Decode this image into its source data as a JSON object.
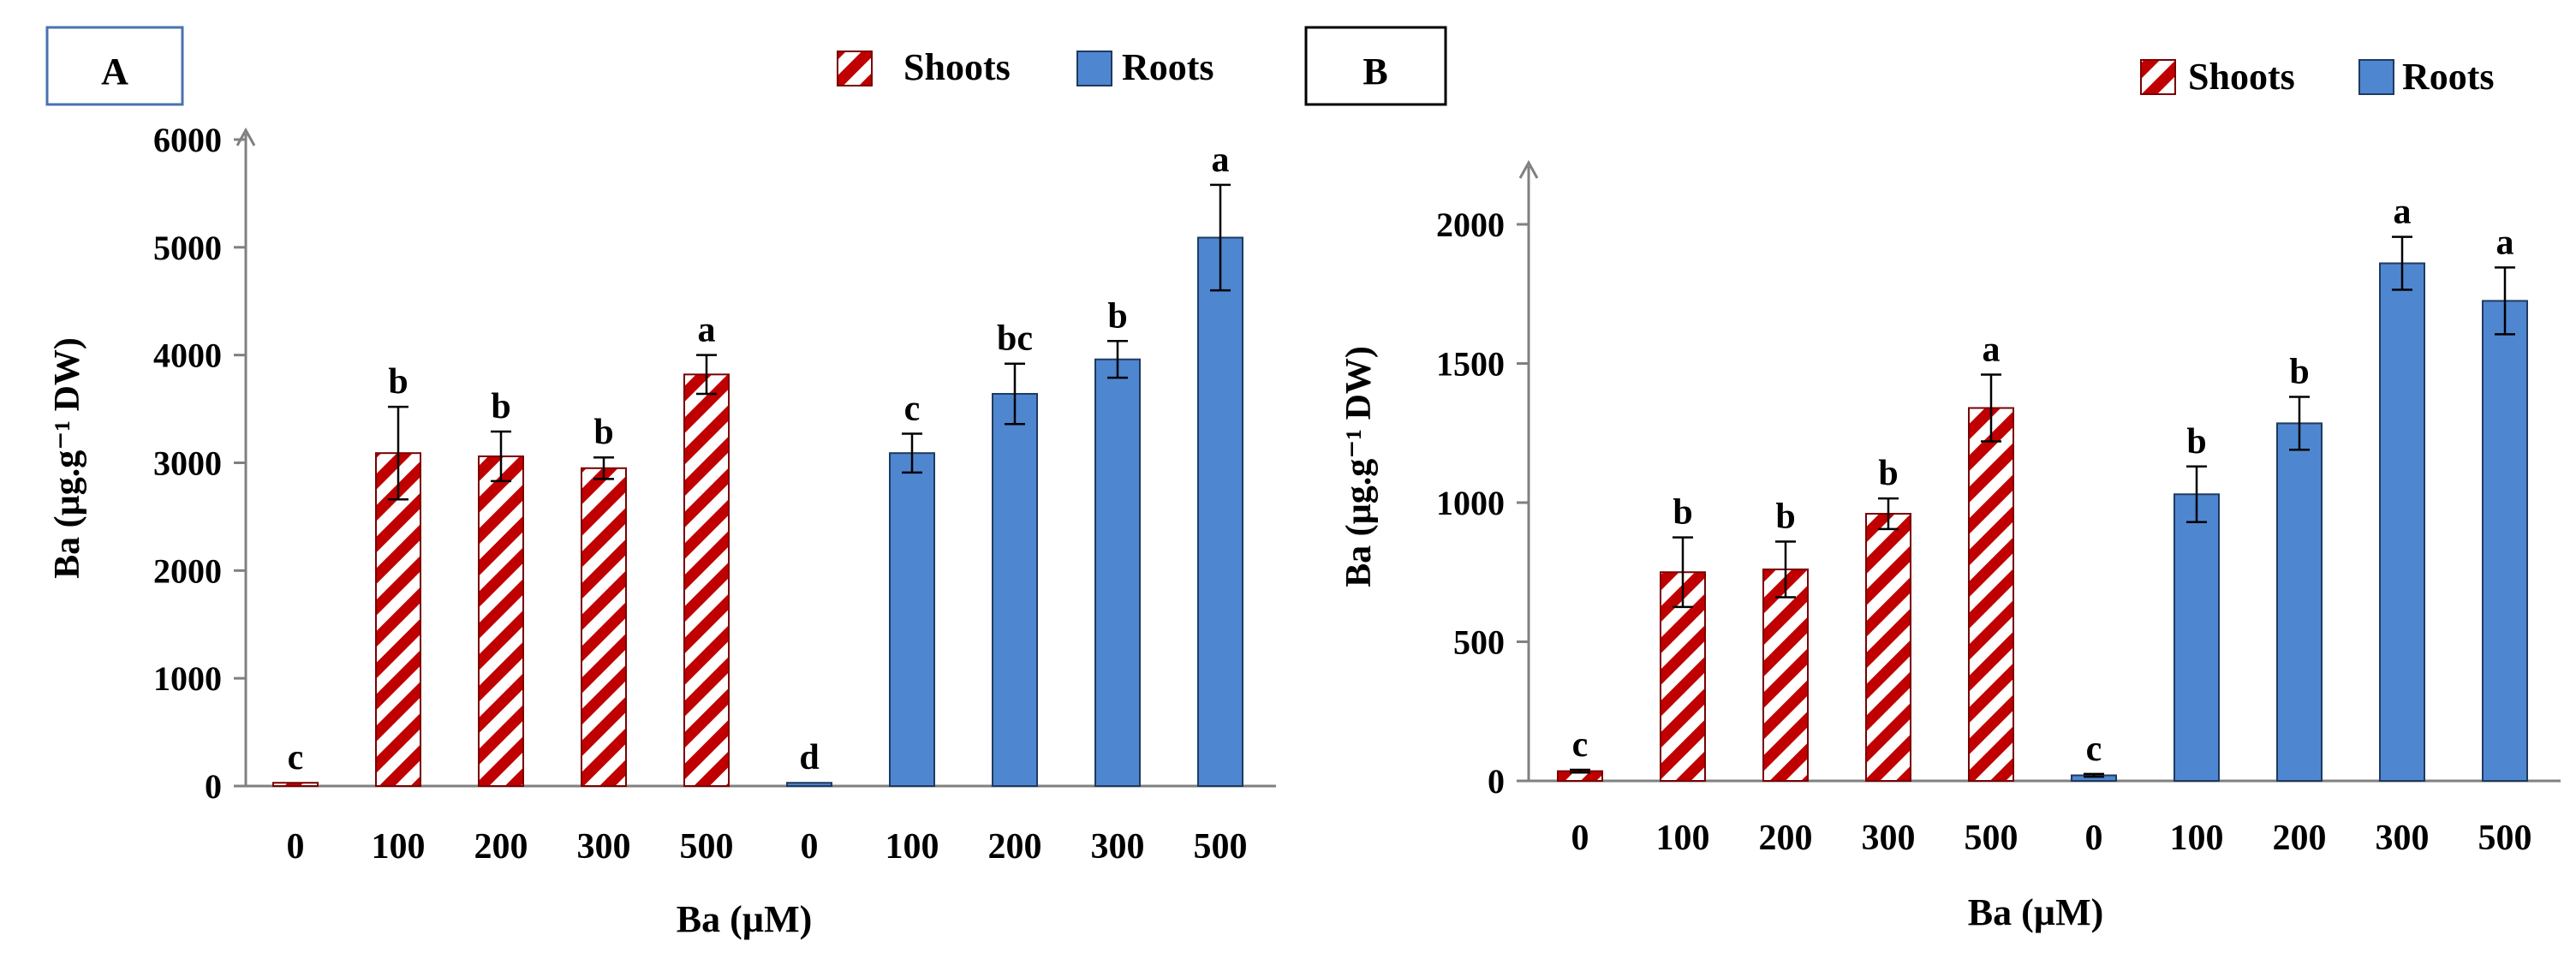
{
  "colors": {
    "shoots_stripe": "#c00000",
    "roots_fill": "#4f86d0",
    "roots_stroke": "#1f3a60",
    "axis": "#808080",
    "error_bar": "#000000"
  },
  "legend": {
    "shoots": "Shoots",
    "roots": "Roots"
  },
  "chart_data": [
    {
      "panel_label": "A",
      "type": "bar",
      "categories": [
        "0",
        "100",
        "200",
        "300",
        "500",
        "0",
        "100",
        "200",
        "300",
        "500"
      ],
      "series": [
        {
          "name": "Shoots",
          "values": [
            30,
            3090,
            3060,
            2950,
            3820,
            null,
            null,
            null,
            null,
            null
          ],
          "errors": [
            0,
            430,
            230,
            100,
            180,
            null,
            null,
            null,
            null,
            null
          ],
          "letters": [
            "c",
            "b",
            "b",
            "b",
            "a",
            null,
            null,
            null,
            null,
            null
          ]
        },
        {
          "name": "Roots",
          "values": [
            null,
            null,
            null,
            null,
            null,
            30,
            3090,
            3640,
            3960,
            5090
          ],
          "errors": [
            null,
            null,
            null,
            null,
            null,
            0,
            180,
            280,
            170,
            490
          ],
          "letters": [
            null,
            null,
            null,
            null,
            null,
            "d",
            "c",
            "bc",
            "b",
            "a"
          ]
        }
      ],
      "ylim": [
        0,
        6000
      ],
      "yticks": [
        0,
        1000,
        2000,
        3000,
        4000,
        5000,
        6000
      ],
      "xlabel": "Ba (µM)",
      "ylabel": "Ba (µg.g⁻¹ DW)",
      "legend_position": "top-right",
      "grid": false
    },
    {
      "panel_label": "B",
      "type": "bar",
      "categories": [
        "0",
        "100",
        "200",
        "300",
        "500",
        "0",
        "100",
        "200",
        "300",
        "500"
      ],
      "series": [
        {
          "name": "Shoots",
          "values": [
            35,
            750,
            760,
            960,
            1340,
            null,
            null,
            null,
            null,
            null
          ],
          "errors": [
            5,
            125,
            100,
            55,
            120,
            null,
            null,
            null,
            null,
            null
          ],
          "letters": [
            "c",
            "b",
            "b",
            "b",
            "a",
            null,
            null,
            null,
            null,
            null
          ]
        },
        {
          "name": "Roots",
          "values": [
            null,
            null,
            null,
            null,
            null,
            20,
            1030,
            1285,
            1860,
            1725
          ],
          "errors": [
            null,
            null,
            null,
            null,
            null,
            5,
            100,
            95,
            95,
            120
          ],
          "letters": [
            null,
            null,
            null,
            null,
            null,
            "c",
            "b",
            "b",
            "a",
            "a"
          ]
        }
      ],
      "ylim": [
        0,
        2000
      ],
      "yticks": [
        0,
        500,
        1000,
        1500,
        2000
      ],
      "xlabel": "Ba (µM)",
      "ylabel": "Ba (µg.g⁻¹ DW)",
      "legend_position": "top-right",
      "grid": false
    }
  ]
}
